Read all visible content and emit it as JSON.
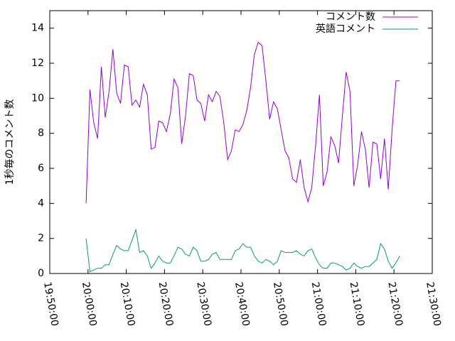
{
  "chart_data": {
    "type": "line",
    "ylabel": "1秒毎のコメント数",
    "x": [
      "19:59:30",
      "20:00:30",
      "20:01:30",
      "20:02:30",
      "20:03:30",
      "20:04:30",
      "20:05:30",
      "20:06:30",
      "20:07:30",
      "20:08:30",
      "20:09:30",
      "20:10:30",
      "20:11:30",
      "20:12:30",
      "20:13:30",
      "20:14:30",
      "20:15:30",
      "20:16:30",
      "20:17:30",
      "20:18:30",
      "20:19:30",
      "20:20:30",
      "20:21:30",
      "20:22:30",
      "20:23:30",
      "20:24:30",
      "20:25:30",
      "20:26:30",
      "20:27:30",
      "20:28:30",
      "20:29:30",
      "20:30:30",
      "20:31:30",
      "20:32:30",
      "20:33:30",
      "20:34:30",
      "20:35:30",
      "20:36:30",
      "20:37:30",
      "20:38:30",
      "20:39:30",
      "20:40:30",
      "20:41:30",
      "20:42:30",
      "20:43:30",
      "20:44:30",
      "20:45:30",
      "20:46:30",
      "20:47:30",
      "20:48:30",
      "20:49:30",
      "20:50:30",
      "20:51:30",
      "20:52:30",
      "20:53:30",
      "20:54:30",
      "20:55:30",
      "20:56:30",
      "20:57:30",
      "20:58:30",
      "20:59:30",
      "21:00:30",
      "21:01:30",
      "21:02:30",
      "21:03:30",
      "21:04:30",
      "21:05:30",
      "21:06:30",
      "21:07:30",
      "21:08:30",
      "21:09:30",
      "21:10:30",
      "21:11:30",
      "21:12:30",
      "21:13:30",
      "21:14:30",
      "21:15:30",
      "21:16:30",
      "21:17:30",
      "21:18:30",
      "21:19:30",
      "21:20:30",
      "21:21:30"
    ],
    "series": [
      {
        "name": "コメント数",
        "color": "#9400d3",
        "values": [
          4.0,
          10.5,
          8.6,
          7.7,
          11.8,
          8.9,
          10.4,
          12.8,
          10.3,
          9.7,
          11.9,
          11.8,
          9.6,
          9.9,
          9.5,
          10.8,
          10.2,
          7.1,
          7.2,
          8.7,
          8.6,
          8.1,
          9.1,
          11.1,
          10.6,
          7.4,
          9.0,
          11.4,
          11.3,
          9.9,
          9.7,
          8.7,
          10.2,
          9.8,
          10.4,
          10.1,
          8.6,
          6.5,
          7.0,
          8.2,
          8.1,
          8.5,
          9.3,
          10.6,
          12.5,
          13.2,
          13.0,
          11.0,
          8.8,
          9.8,
          9.4,
          8.2,
          7.0,
          6.6,
          5.4,
          5.2,
          6.5,
          4.9,
          4.1,
          4.9,
          7.3,
          10.2,
          5.0,
          5.8,
          7.8,
          7.3,
          6.3,
          9.0,
          11.5,
          10.4,
          5.0,
          6.2,
          8.1,
          7.1,
          4.9,
          7.5,
          7.4,
          5.4,
          7.7,
          4.8,
          8.2,
          11.0,
          11.0
        ]
      },
      {
        "name": "英語コメント",
        "color": "#009e73",
        "values": [
          2.0,
          0.1,
          0.2,
          0.3,
          0.3,
          0.5,
          0.5,
          1.1,
          1.6,
          1.4,
          1.3,
          1.3,
          1.9,
          2.5,
          1.2,
          1.3,
          1.0,
          0.3,
          0.6,
          1.0,
          0.7,
          0.6,
          0.6,
          1.0,
          1.5,
          1.4,
          1.1,
          1.0,
          1.5,
          1.3,
          0.7,
          0.7,
          0.8,
          1.1,
          1.2,
          0.8,
          0.8,
          0.8,
          0.8,
          1.3,
          1.4,
          1.7,
          1.5,
          1.5,
          1.0,
          0.7,
          0.6,
          0.8,
          0.7,
          0.5,
          0.7,
          1.3,
          1.2,
          1.2,
          1.2,
          1.3,
          1.1,
          1.0,
          1.3,
          1.4,
          0.9,
          0.5,
          0.3,
          0.3,
          0.6,
          0.6,
          0.5,
          0.4,
          0.2,
          0.3,
          0.6,
          0.4,
          0.3,
          0.4,
          0.4,
          0.6,
          0.8,
          1.7,
          1.4,
          0.7,
          0.3,
          0.6,
          1.0
        ]
      }
    ],
    "xlim": [
      "19:50:00",
      "21:30:00"
    ],
    "xticks": [
      "19:50:00",
      "20:00:00",
      "20:10:00",
      "20:20:00",
      "20:30:00",
      "20:40:00",
      "20:50:00",
      "21:00:00",
      "21:10:00",
      "21:20:00",
      "21:30:00"
    ],
    "ylim": [
      0,
      15
    ],
    "yticks": [
      0,
      2,
      4,
      6,
      8,
      10,
      12,
      14
    ],
    "legend": "top-right"
  }
}
